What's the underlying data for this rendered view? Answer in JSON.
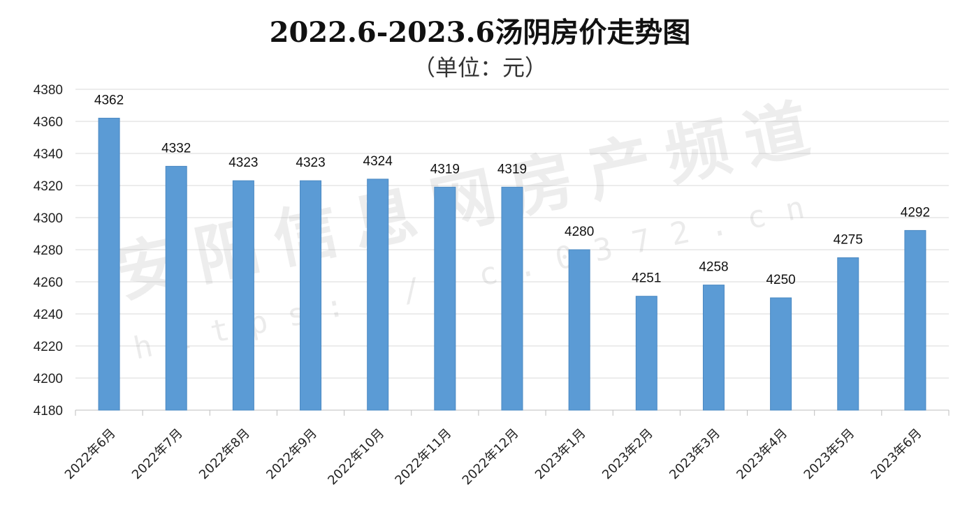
{
  "watermark": {
    "text": "安阳信息网房产频道",
    "url": "h t t p s : / / f c . 0 3 7 2 . c n"
  },
  "chart_data": {
    "type": "bar",
    "title": "2022.6-2023.6汤阴房价走势图",
    "subtitle": "（单位：元）",
    "categories": [
      "2022年6月",
      "2022年7月",
      "2022年8月",
      "2022年9月",
      "2022年10月",
      "2022年11月",
      "2022年12月",
      "2023年1月",
      "2023年2月",
      "2023年3月",
      "2023年4月",
      "2023年5月",
      "2023年6月"
    ],
    "values": [
      4362,
      4332,
      4323,
      4323,
      4324,
      4319,
      4319,
      4280,
      4251,
      4258,
      4250,
      4275,
      4292
    ],
    "ylim": [
      4180,
      4380
    ],
    "yticks": [
      4180,
      4200,
      4220,
      4240,
      4260,
      4280,
      4300,
      4320,
      4340,
      4360,
      4380
    ],
    "xlabel": "",
    "ylabel": "",
    "grid": true,
    "bar_color": "#5b9bd5",
    "data_labels": true
  }
}
